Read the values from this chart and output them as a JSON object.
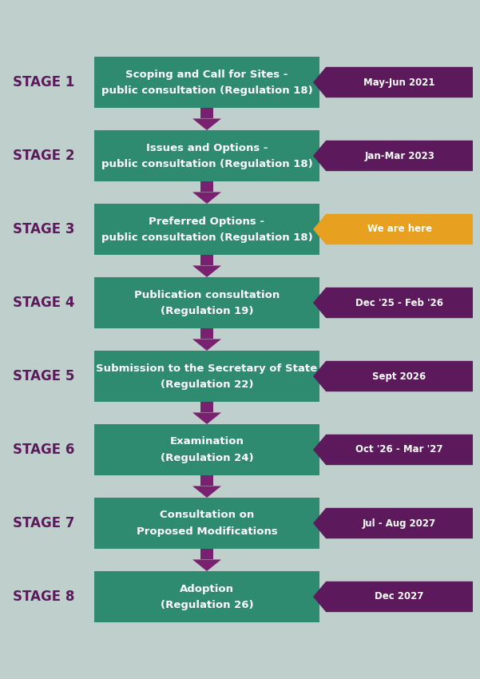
{
  "bg_color": "#bfd0cc",
  "stage_label_color": "#5c1a5c",
  "box_color": "#2e8b70",
  "box_text_color": "#ffffff",
  "arrow_down_color": "#7a2070",
  "we_are_here_color": "#e8a020",
  "stages": [
    {
      "label": "STAGE 1",
      "line1": "Scoping and Call for Sites -",
      "line2": "public consultation (Regulation 18)",
      "date": "May-Jun 2021",
      "date_arrow_color": "#5c1a5c",
      "is_current": false
    },
    {
      "label": "STAGE 2",
      "line1": "Issues and Options -",
      "line2": "public consultation (Regulation 18)",
      "date": "Jan-Mar 2023",
      "date_arrow_color": "#5c1a5c",
      "is_current": false
    },
    {
      "label": "STAGE 3",
      "line1": "Preferred Options -",
      "line2": "public consultation (Regulation 18)",
      "date": "We are here",
      "date_arrow_color": "#e8a020",
      "is_current": true
    },
    {
      "label": "STAGE 4",
      "line1": "Publication consultation",
      "line2": "(Regulation 19)",
      "date": "Dec '25 - Feb '26",
      "date_arrow_color": "#5c1a5c",
      "is_current": false
    },
    {
      "label": "STAGE 5",
      "line1": "Submission to the Secretary of State",
      "line2": "(Regulation 22)",
      "date": "Sept 2026",
      "date_arrow_color": "#5c1a5c",
      "is_current": false
    },
    {
      "label": "STAGE 6",
      "line1": "Examination",
      "line2": "(Regulation 24)",
      "date": "Oct '26 - Mar '27",
      "date_arrow_color": "#5c1a5c",
      "is_current": false
    },
    {
      "label": "STAGE 7",
      "line1": "Consultation on",
      "line2": "Proposed Modifications",
      "date": "Jul - Aug 2027",
      "date_arrow_color": "#5c1a5c",
      "is_current": false
    },
    {
      "label": "STAGE 8",
      "line1": "Adoption",
      "line2": "(Regulation 26)",
      "date": "Dec 2027",
      "date_arrow_color": "#5c1a5c",
      "is_current": false
    }
  ]
}
